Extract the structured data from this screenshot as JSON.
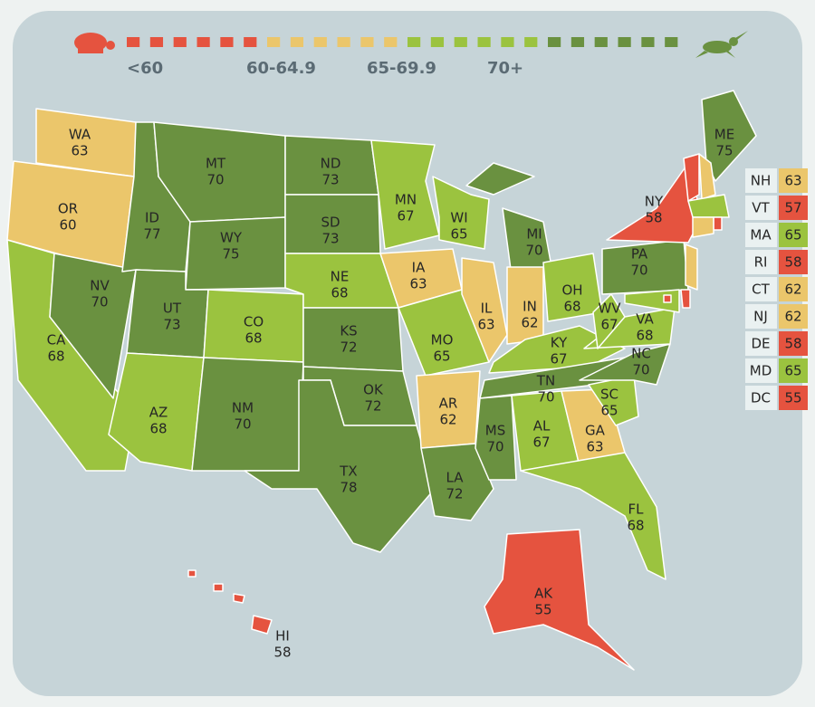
{
  "legend": {
    "items": [
      {
        "label": "<60",
        "color": "#e5533f"
      },
      {
        "label": "60-64.9",
        "color": "#ebc66b"
      },
      {
        "label": "65-69.9",
        "color": "#9bc33f"
      },
      {
        "label": "70+",
        "color": "#6a9140"
      }
    ]
  },
  "states": [
    {
      "abbr": "WA",
      "value": 63
    },
    {
      "abbr": "OR",
      "value": 60
    },
    {
      "abbr": "CA",
      "value": 68
    },
    {
      "abbr": "NV",
      "value": 70
    },
    {
      "abbr": "ID",
      "value": 77
    },
    {
      "abbr": "MT",
      "value": 70
    },
    {
      "abbr": "WY",
      "value": 75
    },
    {
      "abbr": "UT",
      "value": 73
    },
    {
      "abbr": "AZ",
      "value": 68
    },
    {
      "abbr": "CO",
      "value": 68
    },
    {
      "abbr": "NM",
      "value": 70
    },
    {
      "abbr": "ND",
      "value": 73
    },
    {
      "abbr": "SD",
      "value": 73
    },
    {
      "abbr": "NE",
      "value": 68
    },
    {
      "abbr": "KS",
      "value": 72
    },
    {
      "abbr": "OK",
      "value": 72
    },
    {
      "abbr": "TX",
      "value": 78
    },
    {
      "abbr": "MN",
      "value": 67
    },
    {
      "abbr": "IA",
      "value": 63
    },
    {
      "abbr": "MO",
      "value": 65
    },
    {
      "abbr": "AR",
      "value": 62
    },
    {
      "abbr": "LA",
      "value": 72
    },
    {
      "abbr": "WI",
      "value": 65
    },
    {
      "abbr": "MI",
      "value": 70
    },
    {
      "abbr": "IL",
      "value": 63
    },
    {
      "abbr": "IN",
      "value": 62
    },
    {
      "abbr": "OH",
      "value": 68
    },
    {
      "abbr": "KY",
      "value": 67
    },
    {
      "abbr": "TN",
      "value": 70
    },
    {
      "abbr": "MS",
      "value": 70
    },
    {
      "abbr": "AL",
      "value": 67
    },
    {
      "abbr": "GA",
      "value": 63
    },
    {
      "abbr": "FL",
      "value": 68
    },
    {
      "abbr": "SC",
      "value": 65
    },
    {
      "abbr": "NC",
      "value": 70
    },
    {
      "abbr": "VA",
      "value": 68
    },
    {
      "abbr": "WV",
      "value": 67
    },
    {
      "abbr": "PA",
      "value": 70
    },
    {
      "abbr": "NY",
      "value": 58
    },
    {
      "abbr": "ME",
      "value": 75
    },
    {
      "abbr": "AK",
      "value": 55
    },
    {
      "abbr": "HI",
      "value": 58
    }
  ],
  "small_states": [
    {
      "abbr": "NH",
      "value": 63
    },
    {
      "abbr": "VT",
      "value": 57
    },
    {
      "abbr": "MA",
      "value": 65
    },
    {
      "abbr": "RI",
      "value": 58
    },
    {
      "abbr": "CT",
      "value": 62
    },
    {
      "abbr": "NJ",
      "value": 62
    },
    {
      "abbr": "DE",
      "value": 58
    },
    {
      "abbr": "MD",
      "value": 65
    },
    {
      "abbr": "DC",
      "value": 55
    }
  ]
}
